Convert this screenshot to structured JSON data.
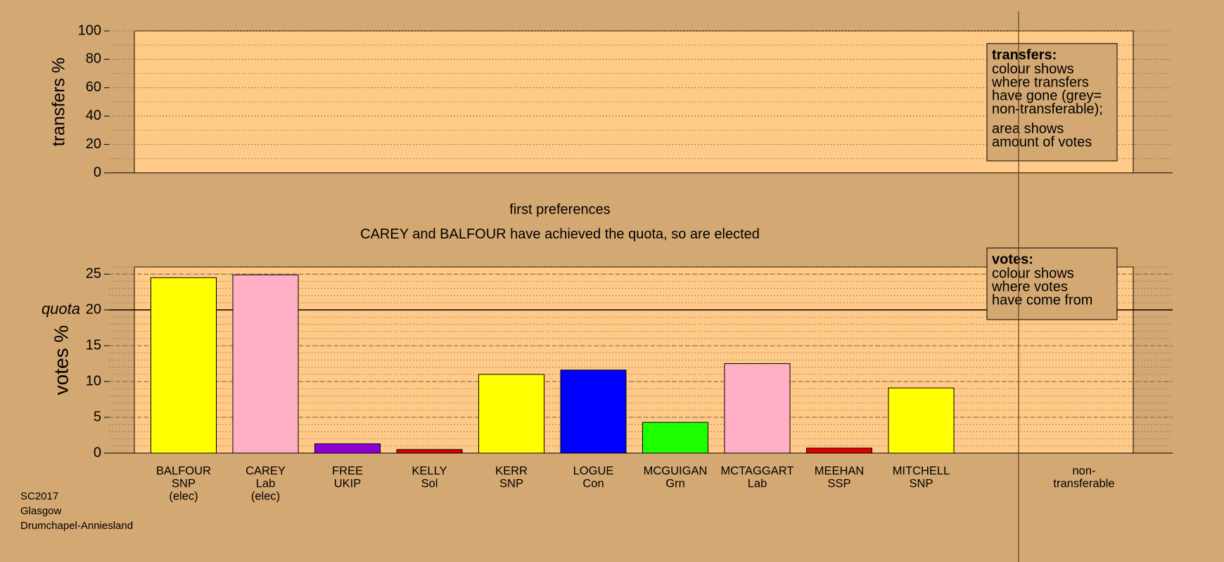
{
  "chart_data": [
    {
      "type": "bar",
      "ylabel": "transfers %",
      "ylim": [
        0,
        100
      ],
      "yticks": [
        0,
        20,
        40,
        60,
        80,
        100
      ],
      "minor_grid_step": 10,
      "legend": {
        "title": "transfers:",
        "paragraphs": [
          [
            "colour shows",
            "where transfers",
            "have gone (grey=",
            "non-transferable);"
          ],
          [
            "area shows",
            "amount of votes"
          ]
        ]
      }
    },
    {
      "type": "bar",
      "title": "first preferences",
      "subtitle": "CAREY and BALFOUR have achieved the quota, so are elected",
      "ylabel": "votes %",
      "ylim": [
        0,
        26
      ],
      "yticks": [
        0,
        5,
        10,
        15,
        20,
        25
      ],
      "minor_grid_step": 1,
      "quota": {
        "value": 20,
        "label": "quota"
      },
      "categories": [
        [
          "BALFOUR",
          "SNP",
          "(elec)"
        ],
        [
          "CAREY",
          "Lab",
          "(elec)"
        ],
        [
          "FREE",
          "UKIP"
        ],
        [
          "KELLY",
          "Sol"
        ],
        [
          "KERR",
          "SNP"
        ],
        [
          "LOGUE",
          "Con"
        ],
        [
          "MCGUIGAN",
          "Grn"
        ],
        [
          "MCTAGGART",
          "Lab"
        ],
        [
          "MEEHAN",
          "SSP"
        ],
        [
          "MITCHELL",
          "SNP"
        ],
        [
          "non-",
          "transferable"
        ]
      ],
      "values": [
        24.5,
        24.9,
        1.3,
        0.5,
        11.0,
        11.6,
        4.3,
        12.5,
        0.7,
        9.1,
        null
      ],
      "colors": [
        "#ffff00",
        "#ffb0c4",
        "#8c00d4",
        "#e80000",
        "#ffff00",
        "#0000ff",
        "#1eff00",
        "#ffb0c4",
        "#e80000",
        "#ffff00",
        null
      ],
      "legend": {
        "title": "votes:",
        "paragraphs": [
          [
            "colour shows",
            "where votes",
            "have come from"
          ]
        ]
      }
    }
  ],
  "footer": [
    "SC2017",
    "Glasgow",
    "Drumchapel-Anniesland"
  ]
}
